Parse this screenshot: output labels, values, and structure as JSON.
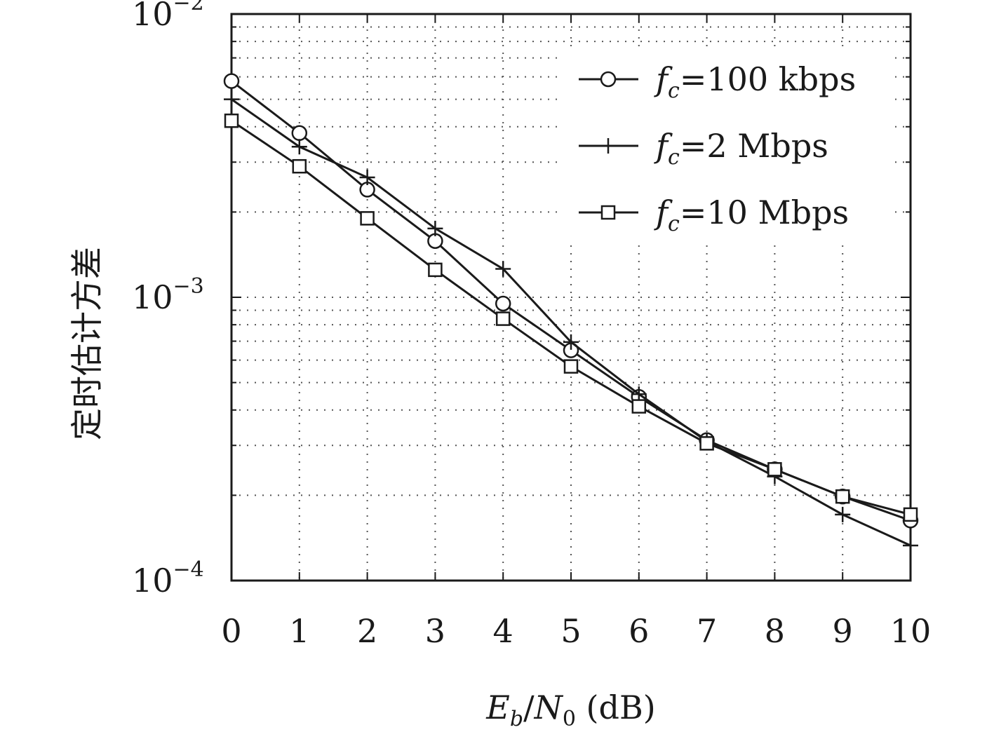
{
  "chart_data": {
    "type": "line",
    "xlabel": "E_b/N_0 (dB)",
    "xlabel_parts": {
      "e": "E",
      "e_sub": "b",
      "slash": "/",
      "n": "N",
      "n_sub": "0",
      "unit": " (dB)"
    },
    "ylabel": "定时估计方差",
    "x": [
      0,
      1,
      2,
      3,
      4,
      5,
      6,
      7,
      8,
      9,
      10
    ],
    "xlim": [
      0,
      10
    ],
    "ylim": [
      0.0001,
      0.01
    ],
    "yscale": "log",
    "grid": true,
    "legend_position": "top-right",
    "x_ticks": [
      "0",
      "1",
      "2",
      "3",
      "4",
      "5",
      "6",
      "7",
      "8",
      "9",
      "10"
    ],
    "y_ticks": [
      {
        "value": 0.01,
        "base": "10",
        "exp": "−2"
      },
      {
        "value": 0.001,
        "base": "10",
        "exp": "−3"
      },
      {
        "value": 0.0001,
        "base": "10",
        "exp": "−4"
      }
    ],
    "series": [
      {
        "name": "fc=100 kbps",
        "legend_parts": {
          "f": "f",
          "sub": "c",
          "rest": "=100 kbps"
        },
        "marker": "circle",
        "values": [
          0.0058,
          0.0038,
          0.0024,
          0.00158,
          0.00095,
          0.00065,
          0.000445,
          0.000313,
          0.000247,
          0.000198,
          0.000163
        ]
      },
      {
        "name": "fc=2 Mbps",
        "legend_parts": {
          "f": "f",
          "sub": "c",
          "rest": "=2 Mbps"
        },
        "marker": "plus",
        "values": [
          0.005,
          0.0034,
          0.00265,
          0.00175,
          0.00126,
          0.000695,
          0.000455,
          0.00031,
          0.000233,
          0.000171,
          0.000133
        ]
      },
      {
        "name": "fc=10 Mbps",
        "legend_parts": {
          "f": "f",
          "sub": "c",
          "rest": "=10 Mbps"
        },
        "marker": "square",
        "values": [
          0.0042,
          0.0029,
          0.0019,
          0.00125,
          0.00084,
          0.00057,
          0.000412,
          0.000305,
          0.000247,
          0.000198,
          0.000171
        ]
      }
    ]
  }
}
